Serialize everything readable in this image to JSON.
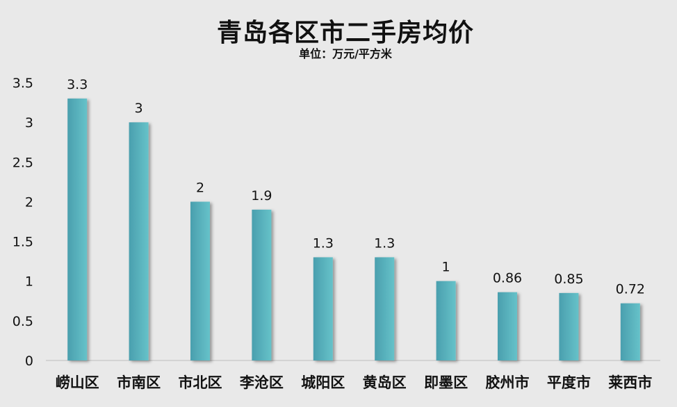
{
  "chart_data": {
    "type": "bar",
    "title": "青岛各区市二手房均价",
    "subtitle": "单位：万元/平方米",
    "categories": [
      "崂山区",
      "市南区",
      "市北区",
      "李沧区",
      "城阳区",
      "黄岛区",
      "即墨区",
      "胶州市",
      "平度市",
      "莱西市"
    ],
    "values": [
      3.3,
      3,
      2,
      1.9,
      1.3,
      1.3,
      1,
      0.86,
      0.85,
      0.72
    ],
    "ylim": [
      0,
      3.5
    ],
    "yticks": [
      "0",
      "0.5",
      "1",
      "1.5",
      "2",
      "2.5",
      "3",
      "3.5"
    ],
    "grid": false,
    "bar_color": [
      "#4a9fae",
      "#66c2c9"
    ],
    "background": "#e9e9e9"
  }
}
